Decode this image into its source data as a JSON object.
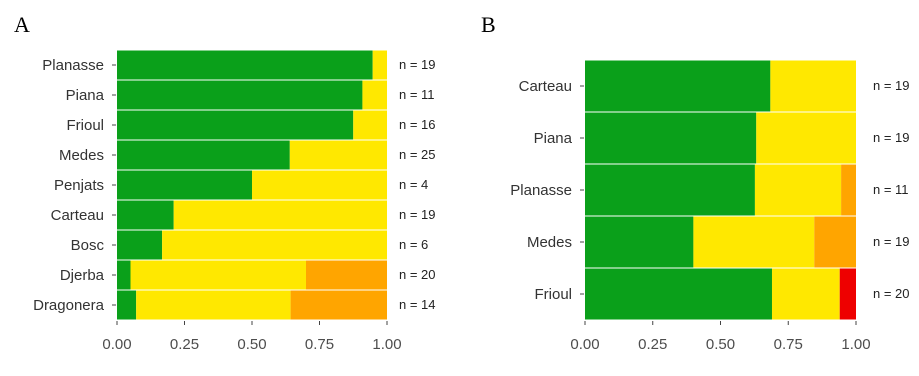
{
  "colors": {
    "green": "#0aa01a",
    "yellow": "#ffe800",
    "orange": "#ffa500",
    "red": "#ee0000"
  },
  "chart_data": [
    {
      "type": "bar",
      "orientation": "horizontal",
      "stacked": true,
      "panel_label": "A",
      "categories": [
        "Planasse",
        "Piana",
        "Frioul",
        "Medes",
        "Penjats",
        "Carteau",
        "Bosc",
        "Djerba",
        "Dragonera"
      ],
      "n_labels": [
        "n = 19",
        "n = 11",
        "n = 16",
        "n = 25",
        "n = 4",
        "n = 19",
        "n = 6",
        "n = 20",
        "n = 14"
      ],
      "series": [
        {
          "color": "#0aa01a",
          "values": [
            0.947,
            0.909,
            0.875,
            0.64,
            0.5,
            0.21,
            0.167,
            0.05,
            0.071
          ]
        },
        {
          "color": "#ffe800",
          "values": [
            0.053,
            0.091,
            0.125,
            0.36,
            0.5,
            0.79,
            0.833,
            0.65,
            0.572
          ]
        },
        {
          "color": "#ffa500",
          "values": [
            0,
            0,
            0,
            0,
            0,
            0,
            0,
            0.3,
            0.357
          ]
        },
        {
          "color": "#ee0000",
          "values": [
            0,
            0,
            0,
            0,
            0,
            0,
            0,
            0,
            0
          ]
        }
      ],
      "xlim": [
        0,
        1
      ],
      "xticks": [
        "0.00",
        "0.25",
        "0.50",
        "0.75",
        "1.00"
      ],
      "xlabel": "",
      "ylabel": ""
    },
    {
      "type": "bar",
      "orientation": "horizontal",
      "stacked": true,
      "panel_label": "B",
      "categories": [
        "Carteau",
        "Piana",
        "Planasse",
        "Medes",
        "Frioul"
      ],
      "n_labels": [
        "n = 19",
        "n = 19",
        "n = 11",
        "n = 19",
        "n = 20"
      ],
      "series": [
        {
          "color": "#0aa01a",
          "values": [
            0.684,
            0.632,
            0.627,
            0.4,
            0.69
          ]
        },
        {
          "color": "#ffe800",
          "values": [
            0.316,
            0.368,
            0.318,
            0.446,
            0.25
          ]
        },
        {
          "color": "#ffa500",
          "values": [
            0,
            0,
            0.055,
            0.154,
            0
          ]
        },
        {
          "color": "#ee0000",
          "values": [
            0,
            0,
            0,
            0,
            0.06
          ]
        }
      ],
      "xlim": [
        0,
        1
      ],
      "xticks": [
        "0.00",
        "0.25",
        "0.50",
        "0.75",
        "1.00"
      ],
      "xlabel": "",
      "ylabel": ""
    }
  ]
}
